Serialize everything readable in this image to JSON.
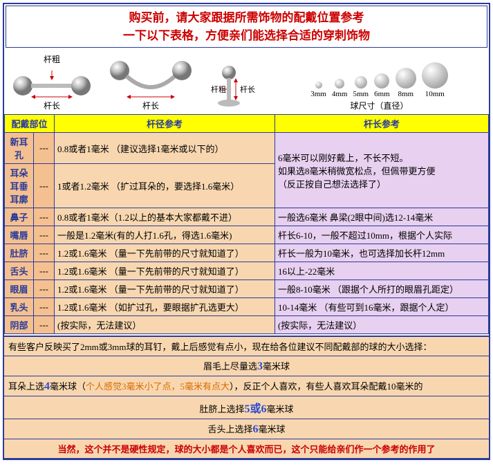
{
  "title": {
    "line1": "购买前，请大家跟据所需饰物的配戴位置参考",
    "line2": "一下以下表格，方便亲们能选择合适的穿刺饰物"
  },
  "diagramLabels": {
    "rodThick": "杆粗",
    "rodLength": "杆长",
    "ballSizeTitle": "球尺寸（直径）"
  },
  "ballSizes": [
    {
      "label": "3mm",
      "px": 10
    },
    {
      "label": "4mm",
      "px": 14
    },
    {
      "label": "5mm",
      "px": 18
    },
    {
      "label": "6mm",
      "px": 22
    },
    {
      "label": "8mm",
      "px": 30
    },
    {
      "label": "10mm",
      "px": 38
    }
  ],
  "headers": {
    "part": "配戴部位",
    "diameter": "杆径参考",
    "length": "杆长参考"
  },
  "rows": [
    {
      "part": "新耳孔",
      "a": "0.8或者1毫米  （建议选择1毫米或以下的）",
      "bRowspan": true,
      "b": "6毫米可以刚好戴上，不长不短。\n如果选8毫米稍微宽松点，但佩带更方便\n（反正按自己想法选择了）"
    },
    {
      "part": "耳朵\n耳垂\n耳廓",
      "a": "1或者1.2毫米  （扩过耳朵的，要选择1.6毫米）"
    },
    {
      "part": "鼻子",
      "a": "0.8或者1毫米（1.2以上的基本大家都戴不进）",
      "b": "一般选6毫米   鼻梁(2眼中间)选12-14毫米"
    },
    {
      "part": "嘴唇",
      "a": "一般是1.2毫米(有的人打1.6孔，得选1.6毫米)",
      "b": "杆长6-10，一般不超过10mm，根据个人实际"
    },
    {
      "part": "肚脐",
      "a": "1.2或1.6毫米 （量一下先前带的尺寸就知道了）",
      "b": "杆长一般为10毫米，也可选择加长杆12mm"
    },
    {
      "part": "舌头",
      "a": "1.2或1.6毫米 （量一下先前带的尺寸就知道了）",
      "b": "16以上-22毫米"
    },
    {
      "part": "眼眉",
      "a": "1.2或1.6毫米 （量一下先前带的尺寸就知道了）",
      "b": "一般8-10毫米  （跟据个人所打的眼眉孔距定）"
    },
    {
      "part": "乳头",
      "a": "1.2或1.6毫米 （如扩过孔，要眼据扩孔选更大）",
      "b": "10-14毫米 （有些可到16毫米，跟据个人定）"
    },
    {
      "part": "阴部",
      "a": "(按实际，无法建议）",
      "b": "(按实际，无法建议）"
    }
  ],
  "notes": {
    "intro": "有些客户反映买了2mm或3mm球的耳钉，戴上后感觉有点小，现在给各位建议不同配戴部的球的大小选择：",
    "eyebrow_pre": "眉毛上尽量选",
    "eyebrow_num": "3",
    "eyebrow_post": "毫米球",
    "ear_pre": "耳朵上选",
    "ear_num": "4",
    "ear_mid": "毫米球（",
    "ear_orange": "个人感觉3毫米小了点，5毫米有点大",
    "ear_post": "），反正个人喜欢，有些人喜欢耳朵配戴10毫米的",
    "belly_pre": "肚脐上选择",
    "belly_num": "5或6",
    "belly_post": "毫米球",
    "tongue_pre": "舌头上选择",
    "tongue_num": "6",
    "tongue_post": "毫米球",
    "final": "当然，这个并不是硬性规定，球的大小都是个人喜欢而已，这个只能给亲们作一个参考的作用了"
  }
}
